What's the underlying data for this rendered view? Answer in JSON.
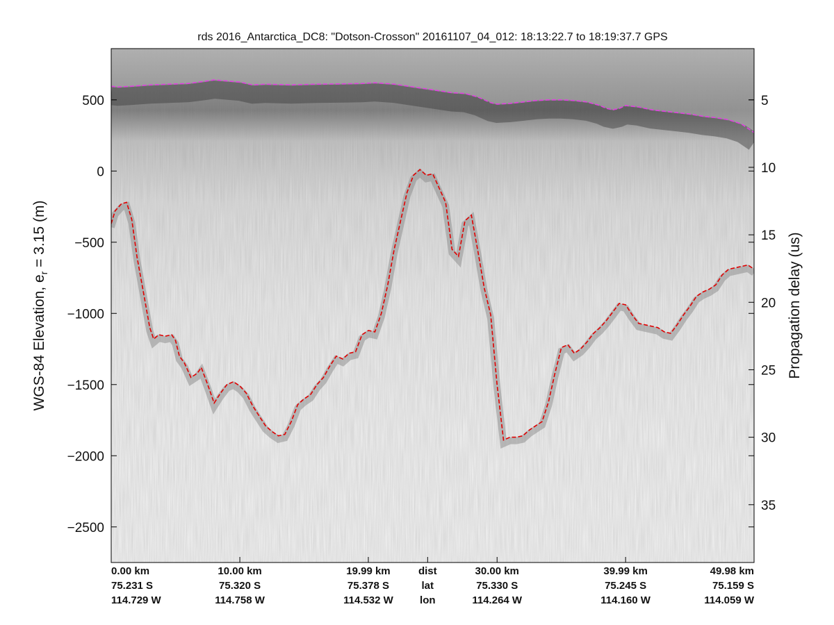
{
  "chart_data": {
    "type": "line",
    "title": "rds 2016_Antarctica_DC8: \"Dotson-Crosson\"  20161107_04_012: 18:13:22.7 to 18:19:37.7 GPS",
    "ylabel": "WGS-84 Elevation, e",
    "ylabel_sub": "r",
    "ylabel_suffix": " = 3.15 (m)",
    "y2label": "Propagation delay (us)",
    "xlim": [
      0,
      49.98
    ],
    "ylim": [
      -2750,
      860
    ],
    "y_ticks": [
      500,
      0,
      -500,
      -1000,
      -1500,
      -2000,
      -2500
    ],
    "y_tick_labels": [
      "500",
      "0",
      "−500",
      "−1000",
      "−1500",
      "−2000",
      "−2500"
    ],
    "y2_ticks": [
      5,
      10,
      15,
      20,
      25,
      30,
      35
    ],
    "y2_tick_labels": [
      "5",
      "10",
      "15",
      "20",
      "25",
      "30",
      "35"
    ],
    "y2_map": {
      "delay_a": 5,
      "elev_a": 500,
      "delay_b": 30,
      "elev_b": -1870
    },
    "grid": false,
    "background": "radar echogram (greyscale)",
    "footer": {
      "columns": [
        {
          "x": 0.0,
          "align": "start",
          "lines": [
            "0.00 km",
            "75.231 S",
            "114.729 W"
          ]
        },
        {
          "x": 10.0,
          "align": "middle",
          "lines": [
            "10.00 km",
            "75.320 S",
            "114.758 W"
          ]
        },
        {
          "x": 19.99,
          "align": "middle",
          "lines": [
            "19.99 km",
            "75.378 S",
            "114.532 W"
          ]
        },
        {
          "x": 24.6,
          "align": "middle",
          "lines": [
            "dist",
            "lat",
            "lon"
          ]
        },
        {
          "x": 30.0,
          "align": "middle",
          "lines": [
            "30.00 km",
            "75.330 S",
            "114.264 W"
          ]
        },
        {
          "x": 39.99,
          "align": "middle",
          "lines": [
            "39.99 km",
            "75.245 S",
            "114.160 W"
          ]
        },
        {
          "x": 49.98,
          "align": "end",
          "lines": [
            "49.98 km",
            "75.159 S",
            "114.059 W"
          ]
        }
      ]
    },
    "series": [
      {
        "role": "surface",
        "color": "#e040e0",
        "style": "dashed",
        "x": [
          0,
          0.5,
          1.5,
          3,
          4.5,
          6,
          7.3,
          8,
          10,
          11,
          12,
          14,
          16,
          18,
          19.5,
          20.5,
          22,
          23.5,
          25,
          26.5,
          27.5,
          28.5,
          29.5,
          30,
          31,
          32,
          33,
          34,
          35,
          36,
          37,
          38,
          38.5,
          39,
          39.5,
          40,
          41,
          42,
          43,
          44,
          45,
          46,
          47,
          48,
          49,
          49.5,
          49.98
        ],
        "y": [
          595,
          590,
          595,
          605,
          610,
          615,
          630,
          640,
          625,
          605,
          610,
          605,
          610,
          612,
          615,
          620,
          610,
          590,
          570,
          550,
          545,
          520,
          480,
          470,
          475,
          485,
          495,
          500,
          500,
          495,
          485,
          460,
          440,
          430,
          440,
          460,
          450,
          430,
          420,
          410,
          400,
          385,
          375,
          360,
          330,
          300,
          270
        ]
      },
      {
        "role": "bed",
        "color": "#e00000",
        "style": "dashed",
        "x": [
          0,
          0.3,
          0.8,
          1.2,
          1.6,
          2.0,
          2.5,
          2.8,
          3.0,
          3.3,
          3.7,
          4.2,
          4.7,
          5.0,
          5.3,
          5.7,
          6.2,
          6.7,
          7.0,
          7.5,
          8.0,
          8.5,
          9.0,
          9.5,
          10.0,
          10.5,
          11.0,
          11.5,
          12.0,
          12.5,
          13.0,
          13.5,
          14.0,
          14.5,
          15.0,
          15.5,
          16.0,
          16.5,
          17.0,
          17.5,
          18.0,
          18.5,
          19.0,
          19.5,
          20.0,
          20.5,
          21.0,
          21.5,
          22.0,
          22.5,
          23.0,
          23.5,
          24.0,
          24.5,
          25.0,
          25.5,
          26.0,
          26.5,
          27.0,
          27.5,
          28.0,
          28.5,
          29.0,
          29.5,
          30.0,
          30.5,
          31.0,
          31.5,
          32.0,
          32.5,
          33.0,
          33.5,
          34.0,
          34.5,
          35.0,
          35.5,
          36.0,
          36.5,
          37.0,
          37.5,
          38.0,
          38.5,
          39.0,
          39.5,
          40.0,
          40.5,
          41.0,
          41.5,
          42.0,
          42.5,
          43.0,
          43.5,
          44.0,
          44.5,
          45.0,
          45.5,
          46.0,
          46.5,
          47.0,
          47.5,
          48.0,
          48.5,
          49.0,
          49.5,
          49.98
        ],
        "y": [
          -370,
          -280,
          -230,
          -220,
          -340,
          -600,
          -850,
          -1000,
          -1100,
          -1180,
          -1150,
          -1160,
          -1150,
          -1190,
          -1300,
          -1350,
          -1450,
          -1420,
          -1380,
          -1500,
          -1630,
          -1560,
          -1500,
          -1480,
          -1510,
          -1560,
          -1650,
          -1720,
          -1790,
          -1830,
          -1860,
          -1850,
          -1760,
          -1640,
          -1600,
          -1570,
          -1500,
          -1450,
          -1370,
          -1300,
          -1320,
          -1280,
          -1270,
          -1150,
          -1120,
          -1130,
          -1000,
          -800,
          -550,
          -350,
          -150,
          -30,
          10,
          -30,
          -20,
          -120,
          -220,
          -550,
          -600,
          -350,
          -310,
          -560,
          -820,
          -1010,
          -1500,
          -1890,
          -1870,
          -1870,
          -1860,
          -1820,
          -1790,
          -1760,
          -1620,
          -1420,
          -1240,
          -1220,
          -1280,
          -1250,
          -1200,
          -1140,
          -1100,
          -1050,
          -990,
          -930,
          -940,
          -1010,
          -1070,
          -1080,
          -1090,
          -1100,
          -1130,
          -1140,
          -1080,
          -1010,
          -950,
          -880,
          -850,
          -830,
          -800,
          -730,
          -690,
          -680,
          -670,
          -660,
          -690
        ]
      }
    ]
  }
}
